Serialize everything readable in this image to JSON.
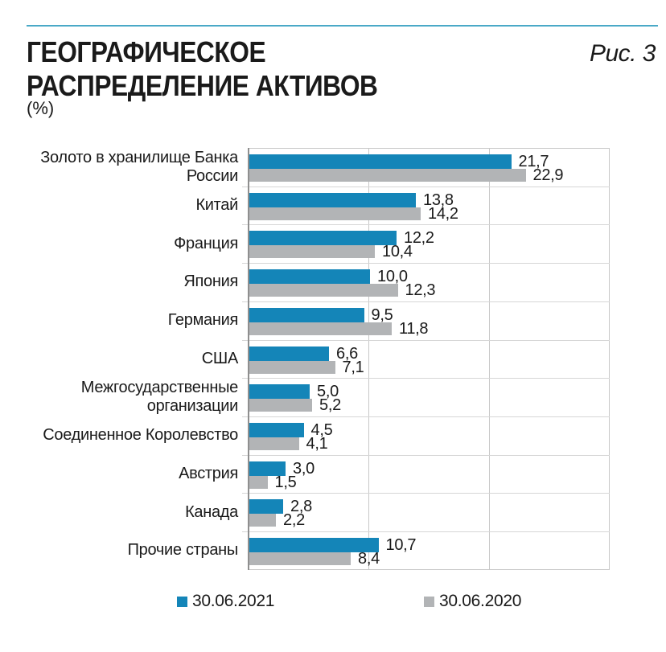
{
  "header": {
    "title": "ГЕОГРАФИЧЕСКОЕ РАСПРЕДЕЛЕНИЕ АКТИВОВ",
    "figure_label": "Рис. 3",
    "unit": "(%)"
  },
  "colors": {
    "rule_teal": "#4aa9c7",
    "bar_blue": "#1485b8",
    "bar_gray": "#b2b4b6",
    "text": "#1a1a1a",
    "grid": "#c8c8c8",
    "axis": "#8f8f8f"
  },
  "chart_data": {
    "type": "bar",
    "orientation": "horizontal",
    "title": "ГЕОГРАФИЧЕСКОЕ РАСПРЕДЕЛЕНИЕ АКТИВОВ",
    "unit": "%",
    "xlim": [
      0,
      30
    ],
    "gridline_step": 10,
    "grid": true,
    "legend_position": "bottom",
    "categories": [
      "Золото в хранилище Банка России",
      "Китай",
      "Франция",
      "Япония",
      "Германия",
      "США",
      "Межгосударственные организации",
      "Соединенное Королевство",
      "Австрия",
      "Канада",
      "Прочие страны"
    ],
    "series": [
      {
        "name": "30.06.2021",
        "color": "#1485b8",
        "values": [
          21.7,
          13.8,
          12.2,
          10.0,
          9.5,
          6.6,
          5.0,
          4.5,
          3.0,
          2.8,
          10.7
        ],
        "labels": [
          "21,7",
          "13,8",
          "12,2",
          "10,0",
          "9,5",
          "6,6",
          "5,0",
          "4,5",
          "3,0",
          "2,8",
          "10,7"
        ]
      },
      {
        "name": "30.06.2020",
        "color": "#b2b4b6",
        "values": [
          22.9,
          14.2,
          10.4,
          12.3,
          11.8,
          7.1,
          5.2,
          4.1,
          1.5,
          2.2,
          8.4
        ],
        "labels": [
          "22,9",
          "14,2",
          "10,4",
          "12,3",
          "11,8",
          "7,1",
          "5,2",
          "4,1",
          "1,5",
          "2,2",
          "8,4"
        ]
      }
    ]
  }
}
